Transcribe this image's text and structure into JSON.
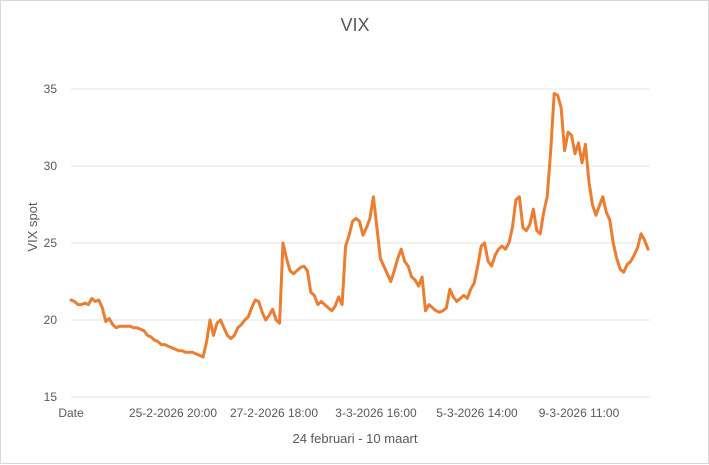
{
  "chart_data": {
    "type": "line",
    "title": "VIX",
    "xlabel": "24 februari - 10 maart",
    "ylabel": "VIX spot",
    "x_ticks": [
      "Date",
      "25-2-2026 20:00",
      "27-2-2026 18:00",
      "3-3-2026 16:00",
      "5-3-2026 14:00",
      "9-3-2026 11:00"
    ],
    "y_ticks": [
      "15",
      "20",
      "25",
      "30",
      "35"
    ],
    "ylim": [
      15,
      36
    ],
    "grid": true,
    "legend": "none",
    "series": [
      {
        "color": "#ed7d31",
        "values": [
          21.3,
          21.2,
          21.0,
          21.0,
          21.1,
          21.0,
          21.4,
          21.2,
          21.3,
          20.8,
          19.9,
          20.1,
          19.7,
          19.5,
          19.6,
          19.6,
          19.6,
          19.6,
          19.5,
          19.5,
          19.4,
          19.3,
          19.0,
          18.9,
          18.7,
          18.6,
          18.4,
          18.4,
          18.3,
          18.2,
          18.1,
          18.0,
          18.0,
          17.9,
          17.9,
          17.9,
          17.8,
          17.7,
          17.6,
          18.6,
          20.0,
          19.0,
          19.8,
          20.0,
          19.5,
          19.0,
          18.8,
          19.0,
          19.5,
          19.7,
          20.0,
          20.2,
          20.8,
          21.3,
          21.2,
          20.5,
          20.0,
          20.3,
          20.7,
          20.0,
          19.8,
          25.0,
          24.0,
          23.2,
          23.0,
          23.2,
          23.4,
          23.5,
          23.2,
          21.8,
          21.6,
          21.0,
          21.2,
          21.0,
          20.8,
          20.6,
          20.9,
          21.5,
          21.0,
          24.8,
          25.5,
          26.4,
          26.6,
          26.4,
          25.5,
          26.0,
          26.6,
          28.0,
          26.0,
          24.0,
          23.5,
          23.0,
          22.5,
          23.2,
          24.0,
          24.6,
          23.8,
          23.5,
          22.8,
          22.6,
          22.2,
          22.8,
          20.6,
          21.0,
          20.8,
          20.6,
          20.5,
          20.6,
          20.8,
          22.0,
          21.5,
          21.2,
          21.4,
          21.6,
          21.4,
          22.0,
          22.4,
          23.5,
          24.8,
          25.0,
          23.8,
          23.5,
          24.2,
          24.6,
          24.8,
          24.6,
          25.0,
          26.0,
          27.8,
          28.0,
          26.0,
          25.8,
          26.2,
          27.2,
          25.8,
          25.6,
          27.0,
          28.0,
          31.0,
          34.7,
          34.6,
          33.8,
          31.0,
          32.2,
          32.0,
          30.8,
          31.5,
          30.2,
          31.4,
          29.0,
          27.5,
          26.8,
          27.4,
          28.0,
          27.0,
          26.5,
          25.0,
          24.0,
          23.3,
          23.1,
          23.6,
          23.8,
          24.2,
          24.7,
          25.6,
          25.2,
          24.6
        ]
      }
    ]
  }
}
